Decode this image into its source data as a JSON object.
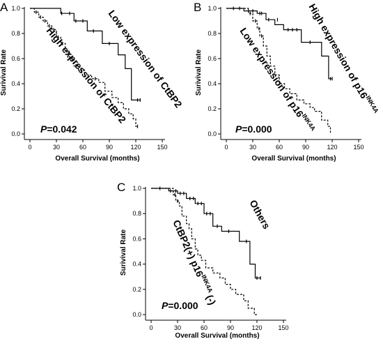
{
  "chart_data": [
    {
      "type": "line",
      "panel_label": "A",
      "xlabel": "Overall Survival (months)",
      "ylabel": "Surivival Rate",
      "xlim": [
        0,
        150
      ],
      "ylim": [
        0.0,
        1.0
      ],
      "x_ticks": [
        "0",
        "30",
        "60",
        "90",
        "120",
        "150"
      ],
      "y_ticks": [
        "0.0",
        "0.2",
        "0.4",
        "0.6",
        "0.8",
        "1.0"
      ],
      "p_prefix": "P",
      "p_value": "=0.042",
      "series": [
        {
          "name": "Low expression of CtBP2",
          "style": "solid",
          "steps": [
            [
              0,
              1.0
            ],
            [
              35,
              1.0
            ],
            [
              35,
              0.96
            ],
            [
              50,
              0.96
            ],
            [
              50,
              0.9
            ],
            [
              65,
              0.9
            ],
            [
              65,
              0.82
            ],
            [
              82,
              0.82
            ],
            [
              82,
              0.72
            ],
            [
              100,
              0.72
            ],
            [
              100,
              0.63
            ],
            [
              108,
              0.63
            ],
            [
              108,
              0.52
            ],
            [
              115,
              0.52
            ],
            [
              115,
              0.27
            ],
            [
              125,
              0.27
            ]
          ],
          "censored": [
            [
              36,
              0.96
            ],
            [
              45,
              0.96
            ],
            [
              52,
              0.9
            ],
            [
              60,
              0.9
            ],
            [
              72,
              0.82
            ],
            [
              90,
              0.72
            ],
            [
              122,
              0.27
            ],
            [
              125,
              0.27
            ]
          ]
        },
        {
          "name": "High expression of CtBP2",
          "style": "dashed",
          "steps": [
            [
              0,
              1.0
            ],
            [
              5,
              1.0
            ],
            [
              5,
              0.97
            ],
            [
              10,
              0.97
            ],
            [
              10,
              0.93
            ],
            [
              15,
              0.93
            ],
            [
              15,
              0.9
            ],
            [
              20,
              0.9
            ],
            [
              20,
              0.86
            ],
            [
              25,
              0.86
            ],
            [
              25,
              0.83
            ],
            [
              30,
              0.83
            ],
            [
              30,
              0.77
            ],
            [
              35,
              0.77
            ],
            [
              35,
              0.72
            ],
            [
              40,
              0.72
            ],
            [
              40,
              0.66
            ],
            [
              45,
              0.66
            ],
            [
              45,
              0.6
            ],
            [
              50,
              0.6
            ],
            [
              50,
              0.54
            ],
            [
              55,
              0.54
            ],
            [
              55,
              0.51
            ],
            [
              62,
              0.51
            ],
            [
              62,
              0.46
            ],
            [
              70,
              0.46
            ],
            [
              70,
              0.44
            ],
            [
              78,
              0.44
            ],
            [
              78,
              0.41
            ],
            [
              85,
              0.41
            ],
            [
              85,
              0.34
            ],
            [
              93,
              0.34
            ],
            [
              93,
              0.29
            ],
            [
              100,
              0.29
            ],
            [
              100,
              0.25
            ],
            [
              106,
              0.25
            ],
            [
              106,
              0.2
            ],
            [
              112,
              0.2
            ],
            [
              112,
              0.16
            ],
            [
              117,
              0.16
            ],
            [
              117,
              0.12
            ],
            [
              120,
              0.12
            ],
            [
              120,
              0.06
            ],
            [
              123,
              0.06
            ]
          ],
          "censored": [
            [
              7,
              0.97
            ],
            [
              12,
              0.93
            ],
            [
              17,
              0.9
            ],
            [
              22,
              0.86
            ],
            [
              27,
              0.83
            ],
            [
              32,
              0.77
            ],
            [
              37,
              0.72
            ],
            [
              42,
              0.66
            ],
            [
              48,
              0.6
            ],
            [
              52,
              0.54
            ],
            [
              58,
              0.51
            ],
            [
              66,
              0.46
            ],
            [
              74,
              0.44
            ],
            [
              122,
              0.06
            ]
          ]
        }
      ]
    },
    {
      "type": "line",
      "panel_label": "B",
      "xlabel": "Overall Survival (months)",
      "ylabel": "Surivival Rate",
      "xlim": [
        0,
        150
      ],
      "ylim": [
        0.0,
        1.0
      ],
      "x_ticks": [
        "0",
        "30",
        "60",
        "90",
        "120",
        "150"
      ],
      "y_ticks": [
        "0.0",
        "0.2",
        "0.4",
        "0.6",
        "0.8",
        "1.0"
      ],
      "p_prefix": "P",
      "p_value": "=0.000",
      "series": [
        {
          "name": "High expression of p16",
          "name_superscript": "INK4A",
          "style": "solid",
          "steps": [
            [
              0,
              1.0
            ],
            [
              20,
              1.0
            ],
            [
              20,
              0.98
            ],
            [
              35,
              0.98
            ],
            [
              35,
              0.96
            ],
            [
              45,
              0.96
            ],
            [
              45,
              0.91
            ],
            [
              55,
              0.91
            ],
            [
              55,
              0.87
            ],
            [
              65,
              0.87
            ],
            [
              65,
              0.83
            ],
            [
              85,
              0.83
            ],
            [
              85,
              0.73
            ],
            [
              108,
              0.73
            ],
            [
              108,
              0.62
            ],
            [
              116,
              0.62
            ],
            [
              116,
              0.44
            ],
            [
              120,
              0.44
            ]
          ],
          "censored": [
            [
              8,
              1.0
            ],
            [
              15,
              1.0
            ],
            [
              25,
              0.98
            ],
            [
              30,
              0.98
            ],
            [
              38,
              0.96
            ],
            [
              40,
              0.96
            ],
            [
              48,
              0.91
            ],
            [
              58,
              0.91
            ],
            [
              70,
              0.83
            ],
            [
              75,
              0.83
            ],
            [
              80,
              0.83
            ],
            [
              95,
              0.73
            ],
            [
              118,
              0.44
            ],
            [
              120,
              0.44
            ]
          ]
        },
        {
          "name": "Low expression of p16",
          "name_superscript": "INK4A",
          "style": "dashed",
          "steps": [
            [
              0,
              1.0
            ],
            [
              25,
              1.0
            ],
            [
              25,
              0.96
            ],
            [
              30,
              0.96
            ],
            [
              30,
              0.9
            ],
            [
              35,
              0.9
            ],
            [
              35,
              0.84
            ],
            [
              38,
              0.84
            ],
            [
              38,
              0.78
            ],
            [
              42,
              0.78
            ],
            [
              42,
              0.7
            ],
            [
              46,
              0.7
            ],
            [
              46,
              0.62
            ],
            [
              50,
              0.62
            ],
            [
              50,
              0.54
            ],
            [
              55,
              0.54
            ],
            [
              55,
              0.47
            ],
            [
              60,
              0.47
            ],
            [
              60,
              0.4
            ],
            [
              66,
              0.4
            ],
            [
              66,
              0.36
            ],
            [
              72,
              0.36
            ],
            [
              72,
              0.32
            ],
            [
              80,
              0.32
            ],
            [
              80,
              0.27
            ],
            [
              88,
              0.27
            ],
            [
              88,
              0.24
            ],
            [
              95,
              0.24
            ],
            [
              95,
              0.21
            ],
            [
              100,
              0.21
            ],
            [
              100,
              0.18
            ],
            [
              108,
              0.18
            ],
            [
              108,
              0.11
            ],
            [
              115,
              0.11
            ],
            [
              115,
              0.06
            ],
            [
              118,
              0.06
            ],
            [
              118,
              0.01
            ]
          ],
          "censored": [
            [
              27,
              0.96
            ],
            [
              33,
              0.9
            ],
            [
              37,
              0.84
            ],
            [
              40,
              0.78
            ]
          ]
        }
      ]
    },
    {
      "type": "line",
      "panel_label": "C",
      "xlabel": "Overall Survival (months)",
      "ylabel": "Surivival Rate",
      "xlim": [
        0,
        150
      ],
      "ylim": [
        0.0,
        1.0
      ],
      "x_ticks": [
        "0",
        "30",
        "60",
        "90",
        "120",
        "150"
      ],
      "y_ticks": [
        "0.0",
        "0.2",
        "0.4",
        "0.6",
        "0.8",
        "1.0"
      ],
      "p_prefix": "P",
      "p_value": "=0.000",
      "series": [
        {
          "name": "Others",
          "style": "solid",
          "steps": [
            [
              0,
              1.0
            ],
            [
              20,
              1.0
            ],
            [
              20,
              0.98
            ],
            [
              30,
              0.98
            ],
            [
              30,
              0.96
            ],
            [
              40,
              0.96
            ],
            [
              40,
              0.92
            ],
            [
              50,
              0.92
            ],
            [
              50,
              0.88
            ],
            [
              60,
              0.88
            ],
            [
              60,
              0.8
            ],
            [
              70,
              0.8
            ],
            [
              70,
              0.7
            ],
            [
              80,
              0.7
            ],
            [
              80,
              0.66
            ],
            [
              100,
              0.66
            ],
            [
              100,
              0.58
            ],
            [
              112,
              0.58
            ],
            [
              112,
              0.4
            ],
            [
              118,
              0.4
            ],
            [
              118,
              0.29
            ],
            [
              124,
              0.29
            ]
          ],
          "censored": [
            [
              10,
              1.0
            ],
            [
              22,
              0.98
            ],
            [
              28,
              0.98
            ],
            [
              33,
              0.96
            ],
            [
              37,
              0.96
            ],
            [
              44,
              0.92
            ],
            [
              48,
              0.92
            ],
            [
              53,
              0.88
            ],
            [
              57,
              0.88
            ],
            [
              63,
              0.8
            ],
            [
              67,
              0.8
            ],
            [
              75,
              0.7
            ],
            [
              88,
              0.66
            ],
            [
              108,
              0.58
            ],
            [
              120,
              0.29
            ],
            [
              124,
              0.29
            ]
          ]
        },
        {
          "name": "CtBP2(+) p16",
          "name_superscript": "INK4A",
          "name_suffix": "(-)",
          "style": "dashed",
          "steps": [
            [
              0,
              1.0
            ],
            [
              25,
              1.0
            ],
            [
              25,
              0.95
            ],
            [
              28,
              0.95
            ],
            [
              28,
              0.9
            ],
            [
              32,
              0.9
            ],
            [
              32,
              0.86
            ],
            [
              35,
              0.86
            ],
            [
              35,
              0.78
            ],
            [
              40,
              0.78
            ],
            [
              40,
              0.72
            ],
            [
              43,
              0.72
            ],
            [
              43,
              0.68
            ],
            [
              46,
              0.68
            ],
            [
              46,
              0.6
            ],
            [
              50,
              0.6
            ],
            [
              50,
              0.52
            ],
            [
              53,
              0.52
            ],
            [
              53,
              0.47
            ],
            [
              57,
              0.47
            ],
            [
              57,
              0.43
            ],
            [
              62,
              0.43
            ],
            [
              62,
              0.37
            ],
            [
              70,
              0.37
            ],
            [
              70,
              0.33
            ],
            [
              78,
              0.33
            ],
            [
              78,
              0.29
            ],
            [
              84,
              0.29
            ],
            [
              84,
              0.24
            ],
            [
              90,
              0.24
            ],
            [
              90,
              0.2
            ],
            [
              96,
              0.2
            ],
            [
              96,
              0.16
            ],
            [
              105,
              0.16
            ],
            [
              105,
              0.11
            ],
            [
              110,
              0.11
            ],
            [
              110,
              0.05
            ],
            [
              117,
              0.05
            ],
            [
              117,
              0.0
            ],
            [
              120,
              0.0
            ]
          ],
          "censored": [
            [
              27,
              0.95
            ],
            [
              30,
              0.9
            ]
          ]
        }
      ]
    }
  ]
}
